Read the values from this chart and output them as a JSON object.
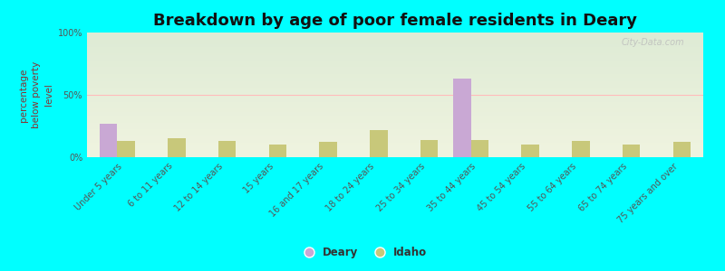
{
  "title": "Breakdown by age of poor female residents in Deary",
  "ylabel": "percentage\nbelow poverty\nlevel",
  "categories": [
    "Under 5 years",
    "6 to 11 years",
    "12 to 14 years",
    "15 years",
    "16 and 17 years",
    "18 to 24 years",
    "25 to 34 years",
    "35 to 44 years",
    "45 to 54 years",
    "55 to 64 years",
    "65 to 74 years",
    "75 years and over"
  ],
  "deary_values": [
    27,
    0,
    0,
    0,
    0,
    0,
    0,
    63,
    0,
    0,
    0,
    0
  ],
  "idaho_values": [
    13,
    15,
    13,
    10,
    12,
    22,
    14,
    14,
    10,
    13,
    10,
    12
  ],
  "deary_color": "#c9a8d4",
  "idaho_color": "#c8c87a",
  "background_color": "#00ffff",
  "ylim": [
    0,
    100
  ],
  "yticks": [
    0,
    50,
    100
  ],
  "ytick_labels": [
    "0%",
    "50%",
    "100%"
  ],
  "bar_width": 0.35,
  "title_fontsize": 13,
  "ylabel_fontsize": 7.5,
  "tick_fontsize": 7,
  "legend_labels": [
    "Deary",
    "Idaho"
  ],
  "watermark": "City-Data.com"
}
